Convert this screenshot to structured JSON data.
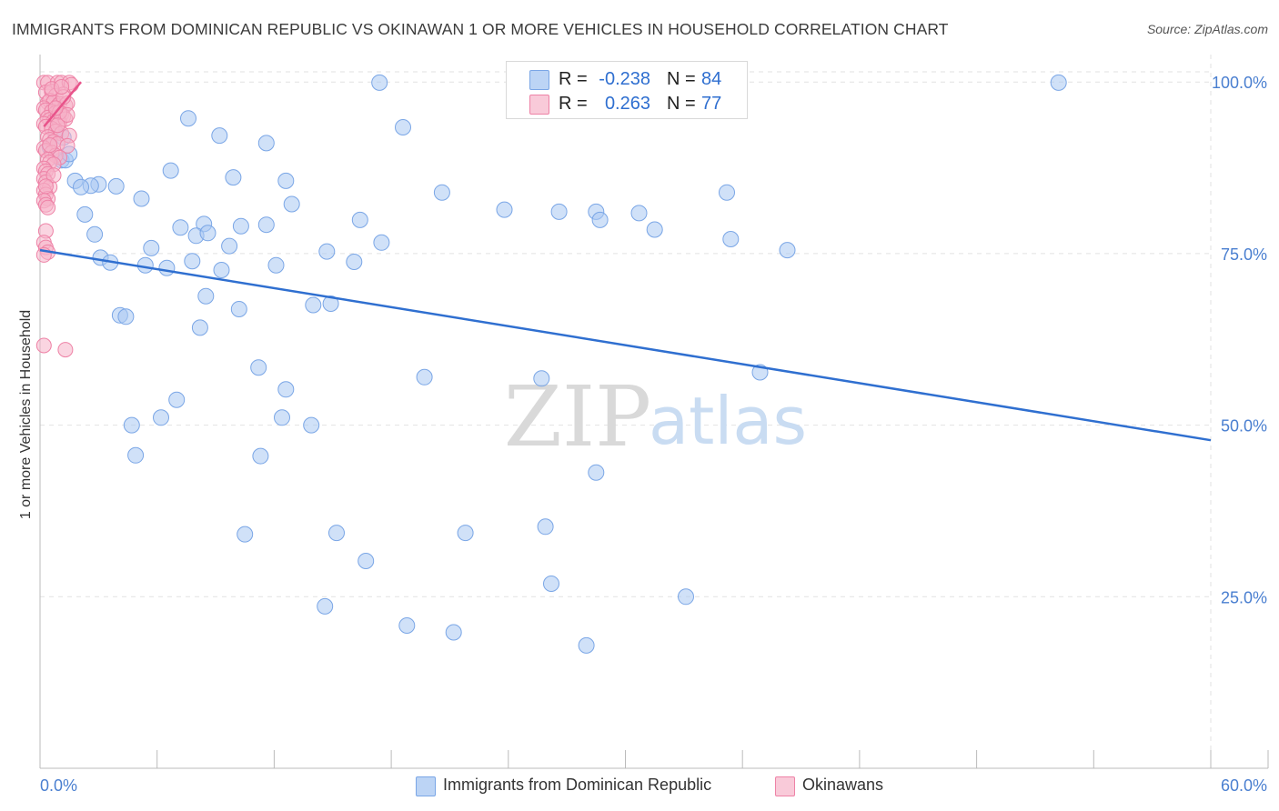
{
  "header": {
    "title": "IMMIGRANTS FROM DOMINICAN REPUBLIC VS OKINAWAN 1 OR MORE VEHICLES IN HOUSEHOLD CORRELATION CHART",
    "source": "Source: ZipAtlas.com"
  },
  "watermark": {
    "zip": "ZIP",
    "atlas": "atlas"
  },
  "legend_top": {
    "r_label": "R =",
    "n_label": "N =",
    "rows": [
      {
        "r": "-0.238",
        "n": "84"
      },
      {
        "r": "0.263",
        "n": "77"
      }
    ]
  },
  "legend_bottom": {
    "items": [
      "Immigrants from Dominican Republic",
      "Okinawans"
    ]
  },
  "colors": {
    "blue_fill": "#a9c8f2",
    "blue_stroke": "#7aa6e6",
    "blue_line": "#2f6fd0",
    "pink_fill": "#f5b3c8",
    "pink_stroke": "#ee82a6",
    "pink_line": "#e8538a",
    "axis_text": "#4a7fd0",
    "grid": "#e2e2e2"
  },
  "chart_data": {
    "type": "scatter",
    "title": "IMMIGRANTS FROM DOMINICAN REPUBLIC VS OKINAWAN 1 OR MORE VEHICLES IN HOUSEHOLD CORRELATION CHART",
    "xlabel": "",
    "ylabel": "1 or more Vehicles in Household",
    "xlim": [
      0,
      60
    ],
    "ylim": [
      0,
      104
    ],
    "x_tick_labels": [
      "0.0%",
      "60.0%"
    ],
    "y_ticks": [
      25,
      50,
      75,
      100
    ],
    "y_tick_labels": [
      "25.0%",
      "50.0%",
      "75.0%",
      "100.0%"
    ],
    "grid": true,
    "legend_placement": "top-center",
    "series": [
      {
        "name": "Immigrants from Dominican Republic",
        "color": "#a9c8f2",
        "trend": {
          "x": [
            0,
            60
          ],
          "y": [
            75.5,
            47.8
          ]
        },
        "points": [
          [
            17.4,
            99.9
          ],
          [
            52.2,
            99.9
          ],
          [
            7.6,
            94.7
          ],
          [
            18.6,
            93.4
          ],
          [
            9.2,
            92.2
          ],
          [
            11.6,
            91.1
          ],
          [
            1.1,
            88.6
          ],
          [
            1.3,
            88.6
          ],
          [
            1.5,
            89.5
          ],
          [
            6.7,
            87.1
          ],
          [
            9.9,
            86.1
          ],
          [
            12.6,
            85.6
          ],
          [
            1.8,
            85.6
          ],
          [
            3.0,
            85.1
          ],
          [
            2.6,
            84.9
          ],
          [
            3.9,
            84.8
          ],
          [
            2.1,
            84.7
          ],
          [
            20.6,
            83.9
          ],
          [
            35.2,
            83.9
          ],
          [
            5.2,
            83.0
          ],
          [
            12.9,
            82.2
          ],
          [
            23.8,
            81.4
          ],
          [
            26.6,
            81.1
          ],
          [
            2.3,
            80.7
          ],
          [
            16.4,
            79.9
          ],
          [
            30.7,
            80.9
          ],
          [
            28.5,
            81.1
          ],
          [
            28.7,
            79.9
          ],
          [
            8.4,
            79.3
          ],
          [
            7.2,
            78.8
          ],
          [
            10.3,
            79.0
          ],
          [
            11.6,
            79.2
          ],
          [
            31.5,
            78.5
          ],
          [
            2.8,
            77.8
          ],
          [
            8.0,
            77.6
          ],
          [
            8.6,
            78.0
          ],
          [
            17.5,
            76.6
          ],
          [
            35.4,
            77.1
          ],
          [
            9.7,
            76.1
          ],
          [
            5.7,
            75.8
          ],
          [
            14.7,
            75.3
          ],
          [
            38.3,
            75.5
          ],
          [
            3.1,
            74.4
          ],
          [
            3.6,
            73.7
          ],
          [
            7.8,
            73.9
          ],
          [
            12.1,
            73.3
          ],
          [
            16.1,
            73.8
          ],
          [
            5.4,
            73.3
          ],
          [
            6.5,
            72.9
          ],
          [
            9.3,
            72.6
          ],
          [
            8.5,
            68.8
          ],
          [
            14.0,
            67.5
          ],
          [
            14.9,
            67.7
          ],
          [
            10.2,
            66.9
          ],
          [
            4.1,
            66.0
          ],
          [
            4.4,
            65.8
          ],
          [
            8.2,
            64.2
          ],
          [
            11.2,
            58.4
          ],
          [
            36.9,
            57.7
          ],
          [
            19.7,
            57.0
          ],
          [
            25.7,
            56.8
          ],
          [
            12.6,
            55.2
          ],
          [
            7.0,
            53.7
          ],
          [
            6.2,
            51.1
          ],
          [
            12.4,
            51.1
          ],
          [
            4.7,
            50.0
          ],
          [
            13.9,
            50.0
          ],
          [
            4.9,
            45.6
          ],
          [
            11.3,
            45.5
          ],
          [
            28.5,
            43.1
          ],
          [
            10.5,
            34.1
          ],
          [
            15.2,
            34.3
          ],
          [
            21.8,
            34.3
          ],
          [
            25.9,
            35.2
          ],
          [
            16.7,
            30.2
          ],
          [
            26.2,
            26.9
          ],
          [
            33.1,
            25.0
          ],
          [
            14.6,
            23.6
          ],
          [
            18.8,
            20.8
          ],
          [
            21.2,
            19.8
          ],
          [
            28.0,
            17.9
          ],
          [
            0.8,
            92.5
          ],
          [
            0.5,
            90.5
          ],
          [
            1.2,
            91.9
          ]
        ]
      },
      {
        "name": "Okinawans",
        "color": "#f5b3c8",
        "trend": {
          "x": [
            0.2,
            2.1
          ],
          "y": [
            93.5,
            100.0
          ]
        },
        "points": [
          [
            0.2,
            99.9
          ],
          [
            0.4,
            99.9
          ],
          [
            0.9,
            99.9
          ],
          [
            1.1,
            99.9
          ],
          [
            1.5,
            99.9
          ],
          [
            1.6,
            99.6
          ],
          [
            0.3,
            98.5
          ],
          [
            0.6,
            98.6
          ],
          [
            0.8,
            98.0
          ],
          [
            1.2,
            98.2
          ],
          [
            0.4,
            97.0
          ],
          [
            0.5,
            97.3
          ],
          [
            0.7,
            97.1
          ],
          [
            0.9,
            96.5
          ],
          [
            1.0,
            96.8
          ],
          [
            1.3,
            96.6
          ],
          [
            1.4,
            96.9
          ],
          [
            0.2,
            96.2
          ],
          [
            0.3,
            95.9
          ],
          [
            0.6,
            95.7
          ],
          [
            0.8,
            95.5
          ],
          [
            1.1,
            95.3
          ],
          [
            1.2,
            95.0
          ],
          [
            0.4,
            94.8
          ],
          [
            0.5,
            94.5
          ],
          [
            0.7,
            94.3
          ],
          [
            0.9,
            94.9
          ],
          [
            1.0,
            94.1
          ],
          [
            1.3,
            94.6
          ],
          [
            0.2,
            93.9
          ],
          [
            0.3,
            93.5
          ],
          [
            0.6,
            93.2
          ],
          [
            0.8,
            92.8
          ],
          [
            1.1,
            92.5
          ],
          [
            1.5,
            92.2
          ],
          [
            0.4,
            92.0
          ],
          [
            0.5,
            91.6
          ],
          [
            0.7,
            91.3
          ],
          [
            0.9,
            91.0
          ],
          [
            1.4,
            90.7
          ],
          [
            0.2,
            90.4
          ],
          [
            0.3,
            90.0
          ],
          [
            0.6,
            89.7
          ],
          [
            0.8,
            89.3
          ],
          [
            1.0,
            89.0
          ],
          [
            0.4,
            88.7
          ],
          [
            0.5,
            88.3
          ],
          [
            0.7,
            88.0
          ],
          [
            0.2,
            87.4
          ],
          [
            0.3,
            87.0
          ],
          [
            0.4,
            86.6
          ],
          [
            0.2,
            85.9
          ],
          [
            0.3,
            85.4
          ],
          [
            0.5,
            84.7
          ],
          [
            0.2,
            84.2
          ],
          [
            0.3,
            83.6
          ],
          [
            0.4,
            83.0
          ],
          [
            0.2,
            82.7
          ],
          [
            0.3,
            82.1
          ],
          [
            0.4,
            81.7
          ],
          [
            0.3,
            78.3
          ],
          [
            0.2,
            76.6
          ],
          [
            0.3,
            75.9
          ],
          [
            0.4,
            75.2
          ],
          [
            0.2,
            74.8
          ],
          [
            1.3,
            61.0
          ],
          [
            0.2,
            61.6
          ],
          [
            1.0,
            95.6
          ],
          [
            1.2,
            97.8
          ],
          [
            0.6,
            99.0
          ],
          [
            0.9,
            93.7
          ],
          [
            1.4,
            95.2
          ],
          [
            0.5,
            90.8
          ],
          [
            0.7,
            86.4
          ],
          [
            0.3,
            84.8
          ],
          [
            1.1,
            99.3
          ],
          [
            0.8,
            96.2
          ]
        ]
      }
    ]
  }
}
